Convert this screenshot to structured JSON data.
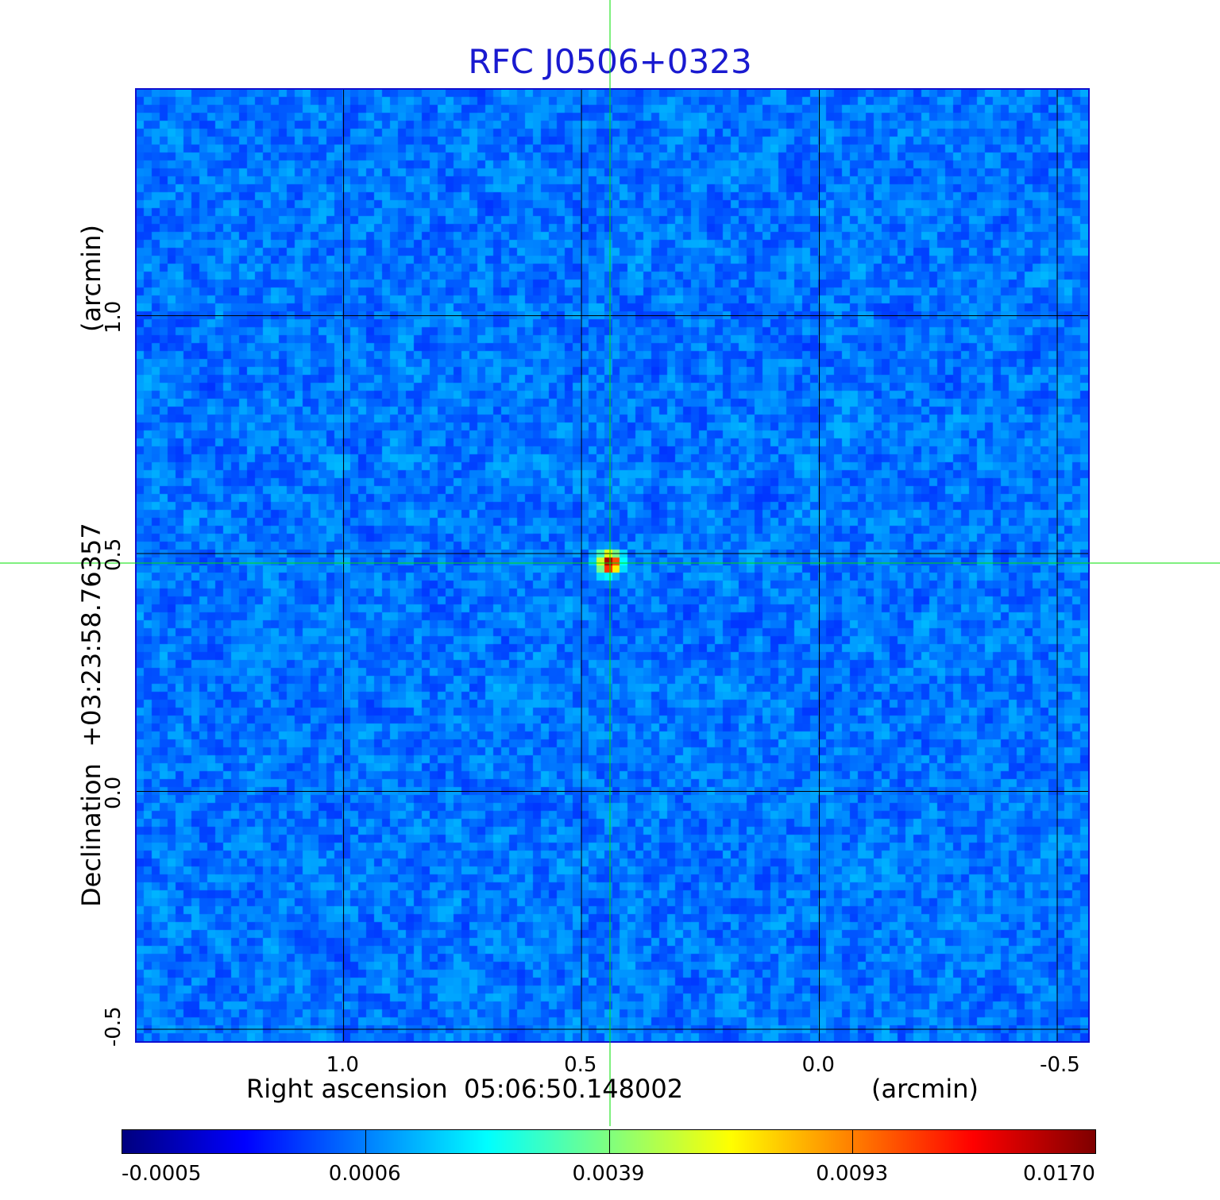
{
  "chart_data": {
    "type": "heatmap",
    "title": "RFC J0506+0323",
    "xlabel": "Right ascension  05:06:50.148002",
    "xunit": "(arcmin)",
    "ylabel": "Declination  +03:23:58.76357",
    "yunit": "(arcmin)",
    "xlim": [
      1.435,
      -0.565
    ],
    "ylim": [
      -0.525,
      1.475
    ],
    "x_ticks": [
      {
        "value": 1.0,
        "label": "1.0"
      },
      {
        "value": 0.5,
        "label": "0.5"
      },
      {
        "value": 0.0,
        "label": "0.0"
      },
      {
        "value": -0.5,
        "label": "-0.5"
      }
    ],
    "y_ticks": [
      {
        "value": -0.5,
        "label": "-0.5"
      },
      {
        "value": 0.0,
        "label": "0.0"
      },
      {
        "value": 0.5,
        "label": "0.5"
      },
      {
        "value": 1.0,
        "label": "1.0"
      }
    ],
    "grid": true,
    "grid_color": "#000000",
    "crosshair": {
      "x": 0.44,
      "y": 0.48,
      "color": "#00e000"
    },
    "source_peak": {
      "x": 0.44,
      "y": 0.48,
      "value": 0.017
    },
    "colormap": "jet",
    "colorbar": {
      "placement": "bottom",
      "ticks": [
        "-0.0005",
        "0.0006",
        "0.0039",
        "0.0093",
        "0.0170"
      ]
    },
    "colors": {
      "title": "#1a1ad0",
      "frame": "#1010d0",
      "background_low": "#1f5ff0",
      "background_high": "#2a8aff"
    }
  }
}
